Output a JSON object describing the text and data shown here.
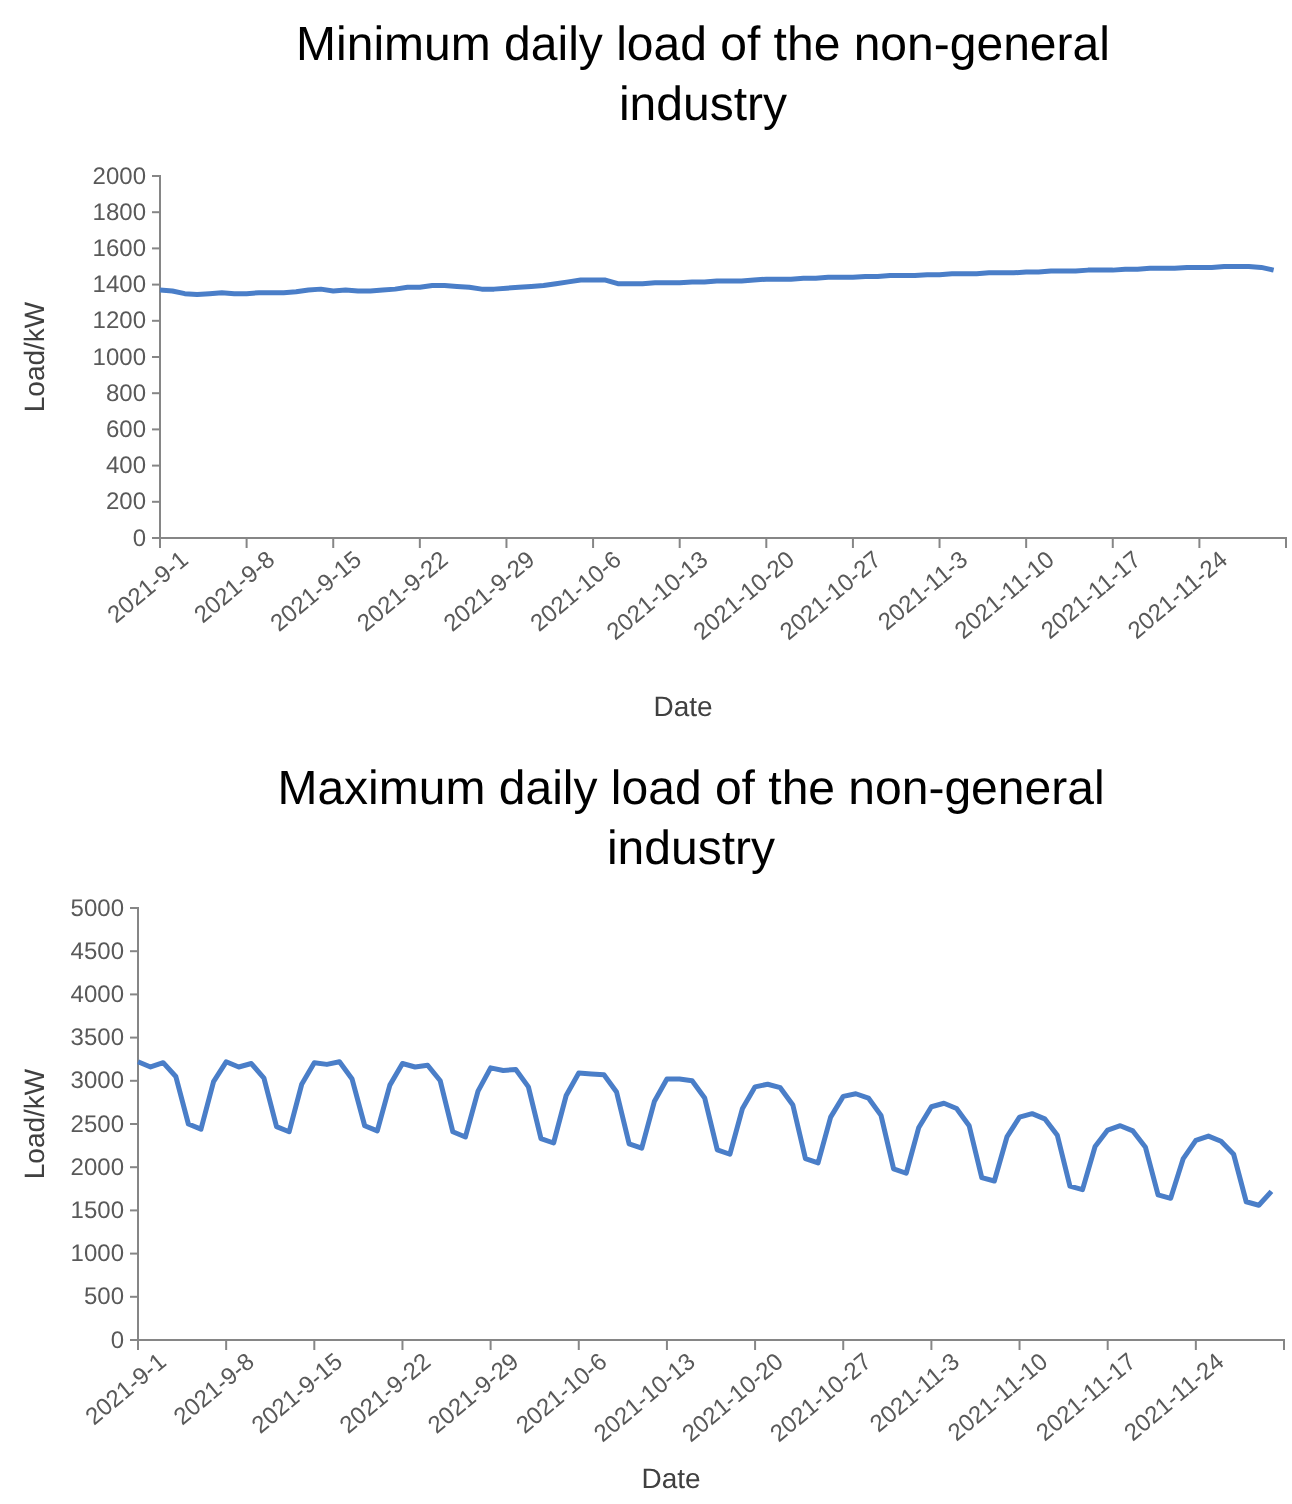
{
  "chart_data": [
    {
      "type": "line",
      "title": "Minimum daily load of the non-general industry",
      "xlabel": "Date",
      "ylabel": "Load/kW",
      "x": [
        "2021-09-01",
        "2021-09-02",
        "2021-09-03",
        "2021-09-04",
        "2021-09-05",
        "2021-09-06",
        "2021-09-07",
        "2021-09-08",
        "2021-09-09",
        "2021-09-10",
        "2021-09-11",
        "2021-09-12",
        "2021-09-13",
        "2021-09-14",
        "2021-09-15",
        "2021-09-16",
        "2021-09-17",
        "2021-09-18",
        "2021-09-19",
        "2021-09-20",
        "2021-09-21",
        "2021-09-22",
        "2021-09-23",
        "2021-09-24",
        "2021-09-25",
        "2021-09-26",
        "2021-09-27",
        "2021-09-28",
        "2021-09-29",
        "2021-09-30",
        "2021-10-01",
        "2021-10-02",
        "2021-10-03",
        "2021-10-04",
        "2021-10-05",
        "2021-10-06",
        "2021-10-07",
        "2021-10-08",
        "2021-10-09",
        "2021-10-10",
        "2021-10-11",
        "2021-10-12",
        "2021-10-13",
        "2021-10-14",
        "2021-10-15",
        "2021-10-16",
        "2021-10-17",
        "2021-10-18",
        "2021-10-19",
        "2021-10-20",
        "2021-10-21",
        "2021-10-22",
        "2021-10-23",
        "2021-10-24",
        "2021-10-25",
        "2021-10-26",
        "2021-10-27",
        "2021-10-28",
        "2021-10-29",
        "2021-10-30",
        "2021-10-31",
        "2021-11-01",
        "2021-11-02",
        "2021-11-03",
        "2021-11-04",
        "2021-11-05",
        "2021-11-06",
        "2021-11-07",
        "2021-11-08",
        "2021-11-09",
        "2021-11-10",
        "2021-11-11",
        "2021-11-12",
        "2021-11-13",
        "2021-11-14",
        "2021-11-15",
        "2021-11-16",
        "2021-11-17",
        "2021-11-18",
        "2021-11-19",
        "2021-11-20",
        "2021-11-21",
        "2021-11-22",
        "2021-11-23",
        "2021-11-24",
        "2021-11-25",
        "2021-11-26",
        "2021-11-27",
        "2021-11-28",
        "2021-11-29",
        "2021-11-30"
      ],
      "series": [
        {
          "color": "#4a7ec8",
          "values": [
            1370,
            1365,
            1350,
            1345,
            1350,
            1355,
            1350,
            1350,
            1355,
            1355,
            1355,
            1360,
            1370,
            1375,
            1365,
            1370,
            1365,
            1365,
            1370,
            1375,
            1385,
            1385,
            1395,
            1395,
            1390,
            1385,
            1375,
            1375,
            1380,
            1385,
            1390,
            1395,
            1405,
            1415,
            1425,
            1425,
            1425,
            1405,
            1405,
            1405,
            1410,
            1410,
            1410,
            1415,
            1415,
            1420,
            1420,
            1420,
            1425,
            1430,
            1430,
            1430,
            1435,
            1435,
            1440,
            1440,
            1440,
            1445,
            1445,
            1450,
            1450,
            1450,
            1455,
            1455,
            1460,
            1460,
            1460,
            1465,
            1465,
            1465,
            1470,
            1470,
            1475,
            1475,
            1475,
            1480,
            1480,
            1480,
            1485,
            1485,
            1490,
            1490,
            1490,
            1495,
            1495,
            1495,
            1500,
            1500,
            1500,
            1495,
            1480
          ]
        }
      ],
      "xlim": [
        "2021-09-01",
        "2021-12-01"
      ],
      "xticks": [
        {
          "value": "2021-09-01",
          "label": "2021-9-1"
        },
        {
          "value": "2021-09-08",
          "label": "2021-9-8"
        },
        {
          "value": "2021-09-15",
          "label": "2021-9-15"
        },
        {
          "value": "2021-09-22",
          "label": "2021-9-22"
        },
        {
          "value": "2021-09-29",
          "label": "2021-9-29"
        },
        {
          "value": "2021-10-06",
          "label": "2021-10-6"
        },
        {
          "value": "2021-10-13",
          "label": "2021-10-13"
        },
        {
          "value": "2021-10-20",
          "label": "2021-10-20"
        },
        {
          "value": "2021-10-27",
          "label": "2021-10-27"
        },
        {
          "value": "2021-11-03",
          "label": "2021-11-3"
        },
        {
          "value": "2021-11-10",
          "label": "2021-11-10"
        },
        {
          "value": "2021-11-17",
          "label": "2021-11-17"
        },
        {
          "value": "2021-11-24",
          "label": "2021-11-24"
        },
        {
          "value": "2021-12-01",
          "label": null
        }
      ],
      "ylim": [
        0,
        2000
      ],
      "yticks": [
        0,
        200,
        400,
        600,
        800,
        1000,
        1200,
        1400,
        1600,
        1800,
        2000
      ]
    },
    {
      "type": "line",
      "title": "Maximum daily load of the non-general industry",
      "xlabel": "Date",
      "ylabel": "Load/kW",
      "x": [
        "2021-09-01",
        "2021-09-02",
        "2021-09-03",
        "2021-09-04",
        "2021-09-05",
        "2021-09-06",
        "2021-09-07",
        "2021-09-08",
        "2021-09-09",
        "2021-09-10",
        "2021-09-11",
        "2021-09-12",
        "2021-09-13",
        "2021-09-14",
        "2021-09-15",
        "2021-09-16",
        "2021-09-17",
        "2021-09-18",
        "2021-09-19",
        "2021-09-20",
        "2021-09-21",
        "2021-09-22",
        "2021-09-23",
        "2021-09-24",
        "2021-09-25",
        "2021-09-26",
        "2021-09-27",
        "2021-09-28",
        "2021-09-29",
        "2021-09-30",
        "2021-10-01",
        "2021-10-02",
        "2021-10-03",
        "2021-10-04",
        "2021-10-05",
        "2021-10-06",
        "2021-10-07",
        "2021-10-08",
        "2021-10-09",
        "2021-10-10",
        "2021-10-11",
        "2021-10-12",
        "2021-10-13",
        "2021-10-14",
        "2021-10-15",
        "2021-10-16",
        "2021-10-17",
        "2021-10-18",
        "2021-10-19",
        "2021-10-20",
        "2021-10-21",
        "2021-10-22",
        "2021-10-23",
        "2021-10-24",
        "2021-10-25",
        "2021-10-26",
        "2021-10-27",
        "2021-10-28",
        "2021-10-29",
        "2021-10-30",
        "2021-10-31",
        "2021-11-01",
        "2021-11-02",
        "2021-11-03",
        "2021-11-04",
        "2021-11-05",
        "2021-11-06",
        "2021-11-07",
        "2021-11-08",
        "2021-11-09",
        "2021-11-10",
        "2021-11-11",
        "2021-11-12",
        "2021-11-13",
        "2021-11-14",
        "2021-11-15",
        "2021-11-16",
        "2021-11-17",
        "2021-11-18",
        "2021-11-19",
        "2021-11-20",
        "2021-11-21",
        "2021-11-22",
        "2021-11-23",
        "2021-11-24",
        "2021-11-25",
        "2021-11-26",
        "2021-11-27",
        "2021-11-28",
        "2021-11-29",
        "2021-11-30"
      ],
      "series": [
        {
          "color": "#4a7ec8",
          "values": [
            3220,
            3160,
            3210,
            3050,
            2500,
            2440,
            2990,
            3220,
            3160,
            3200,
            3030,
            2470,
            2410,
            2960,
            3210,
            3190,
            3220,
            3020,
            2480,
            2420,
            2950,
            3200,
            3160,
            3180,
            3000,
            2410,
            2350,
            2880,
            3150,
            3120,
            3130,
            2930,
            2330,
            2280,
            2830,
            3090,
            3080,
            3070,
            2870,
            2270,
            2220,
            2760,
            3020,
            3020,
            3000,
            2800,
            2200,
            2150,
            2680,
            2930,
            2960,
            2920,
            2720,
            2100,
            2050,
            2580,
            2820,
            2850,
            2800,
            2600,
            1980,
            1930,
            2460,
            2700,
            2740,
            2680,
            2480,
            1880,
            1840,
            2350,
            2580,
            2620,
            2560,
            2370,
            1780,
            1740,
            2240,
            2430,
            2480,
            2420,
            2230,
            1680,
            1640,
            2100,
            2310,
            2360,
            2300,
            2150,
            1600,
            1560,
            1720
          ]
        }
      ],
      "xlim": [
        "2021-09-01",
        "2021-12-01"
      ],
      "xticks": [
        {
          "value": "2021-09-01",
          "label": "2021-9-1"
        },
        {
          "value": "2021-09-08",
          "label": "2021-9-8"
        },
        {
          "value": "2021-09-15",
          "label": "2021-9-15"
        },
        {
          "value": "2021-09-22",
          "label": "2021-9-22"
        },
        {
          "value": "2021-09-29",
          "label": "2021-9-29"
        },
        {
          "value": "2021-10-06",
          "label": "2021-10-6"
        },
        {
          "value": "2021-10-13",
          "label": "2021-10-13"
        },
        {
          "value": "2021-10-20",
          "label": "2021-10-20"
        },
        {
          "value": "2021-10-27",
          "label": "2021-10-27"
        },
        {
          "value": "2021-11-03",
          "label": "2021-11-3"
        },
        {
          "value": "2021-11-10",
          "label": "2021-11-10"
        },
        {
          "value": "2021-11-17",
          "label": "2021-11-17"
        },
        {
          "value": "2021-11-24",
          "label": "2021-11-24"
        },
        {
          "value": "2021-12-01",
          "label": null
        }
      ],
      "ylim": [
        0,
        5000
      ],
      "yticks": [
        0,
        500,
        1000,
        1500,
        2000,
        2500,
        3000,
        3500,
        4000,
        4500,
        5000
      ]
    }
  ]
}
